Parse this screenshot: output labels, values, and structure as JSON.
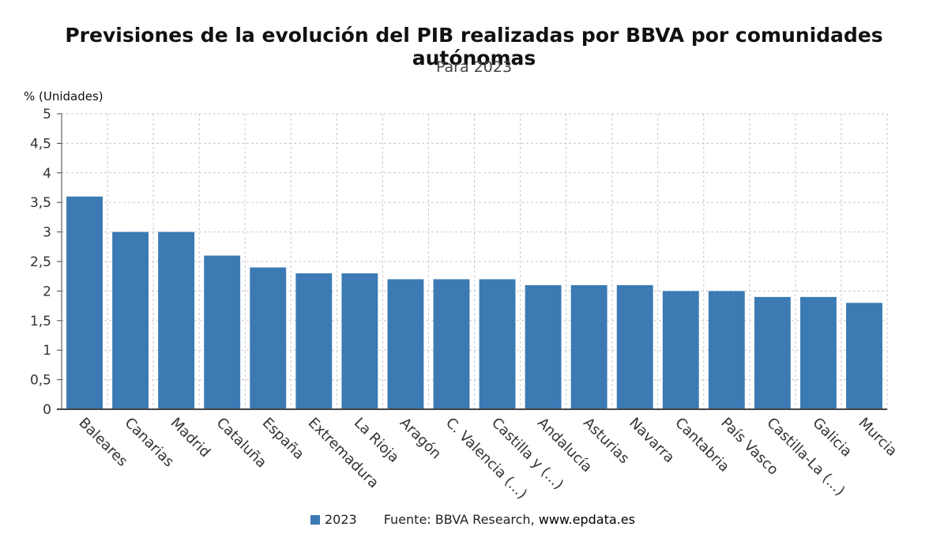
{
  "chart_data": {
    "type": "bar",
    "title": "Previsiones de la evolución del PIB realizadas por BBVA por comunidades autónomas",
    "subtitle": "Para 2023",
    "ylabel": "% (Unidades)",
    "xlabel": "",
    "ylim": [
      0,
      5
    ],
    "yticks": [
      "0",
      "0,5",
      "1",
      "1,5",
      "2",
      "2,5",
      "3",
      "3,5",
      "4",
      "4,5",
      "5"
    ],
    "categories": [
      "Baleares",
      "Canarias",
      "Madrid",
      "Cataluña",
      "España",
      "Extremadura",
      "La Rioja",
      "Aragón",
      "C. Valencia (...)",
      "Castilla y (...)",
      "Andalucía",
      "Asturias",
      "Navarra",
      "Cantabria",
      "País Vasco",
      "Castilla-La (...)",
      "Galicia",
      "Murcia"
    ],
    "series": [
      {
        "name": "2023",
        "values": [
          3.6,
          3.0,
          3.0,
          2.6,
          2.4,
          2.3,
          2.3,
          2.2,
          2.2,
          2.2,
          2.1,
          2.1,
          2.1,
          2.0,
          2.0,
          1.9,
          1.9,
          1.8
        ]
      }
    ],
    "grid": true,
    "legend_position": "bottom",
    "bar_color": "#3b7ab3"
  },
  "source": {
    "prefix": "Fuente: BBVA Research,",
    "site": "www.epdata.es"
  }
}
